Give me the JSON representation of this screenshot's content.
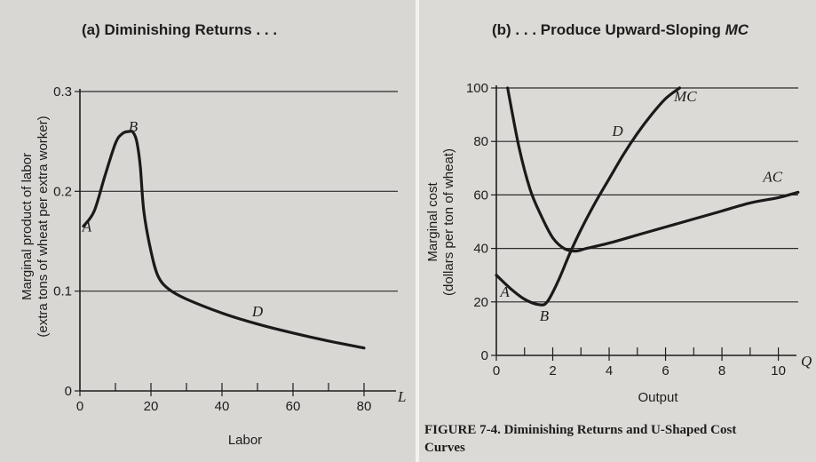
{
  "chart_data": [
    {
      "type": "line",
      "title": "(a) Diminishing Returns . . .",
      "xlabel": "Labor",
      "ylabel_line1": "Marginal product of labor",
      "ylabel_line2": "(extra tons of wheat per extra worker)",
      "axis_end_label": "L",
      "xlim": [
        0,
        90
      ],
      "ylim": [
        0,
        0.3
      ],
      "xticks": [
        "0",
        "20",
        "40",
        "60",
        "80"
      ],
      "xtick_values": [
        0,
        20,
        40,
        60,
        80
      ],
      "yticks": [
        "0",
        "0.1",
        "0.2",
        "0.3"
      ],
      "ytick_values": [
        0,
        0.1,
        0.2,
        0.3
      ],
      "grid": true,
      "series": [
        {
          "x": [
            1,
            4,
            7,
            10,
            12,
            14,
            15,
            16,
            17,
            18,
            20,
            22,
            25,
            30,
            40,
            50,
            60,
            70,
            80
          ],
          "y": [
            0.165,
            0.18,
            0.215,
            0.248,
            0.258,
            0.26,
            0.259,
            0.25,
            0.225,
            0.18,
            0.14,
            0.115,
            0.102,
            0.092,
            0.078,
            0.067,
            0.058,
            0.05,
            0.043
          ]
        }
      ],
      "points": [
        {
          "label": "A",
          "x": 2,
          "y": 0.16
        },
        {
          "label": "B",
          "x": 15,
          "y": 0.26
        },
        {
          "label": "D",
          "x": 50,
          "y": 0.075
        }
      ]
    },
    {
      "type": "line",
      "title_prefix": "(b) . . . Produce Upward-Sloping",
      "title_italic": "MC",
      "xlabel": "Output",
      "ylabel_line1": "Marginal cost",
      "ylabel_line2": "(dollars per ton of wheat)",
      "axis_end_label": "Q",
      "xlim": [
        0,
        10.8
      ],
      "ylim": [
        0,
        100
      ],
      "xticks": [
        "0",
        "2",
        "4",
        "6",
        "8",
        "10"
      ],
      "xtick_values": [
        0,
        2,
        4,
        6,
        8,
        10
      ],
      "yticks": [
        "0",
        "20",
        "40",
        "60",
        "80",
        "100"
      ],
      "ytick_values": [
        0,
        20,
        40,
        60,
        80,
        100
      ],
      "grid": true,
      "series": [
        {
          "name": "MC",
          "x": [
            0,
            0.5,
            1,
            1.5,
            1.8,
            2.2,
            2.6,
            3,
            3.5,
            4,
            4.5,
            5,
            5.5,
            6,
            6.5
          ],
          "y": [
            30,
            25,
            21,
            19,
            20,
            28,
            38,
            47,
            57,
            66,
            75,
            83,
            90,
            96,
            100
          ]
        },
        {
          "name": "AC",
          "x": [
            0.4,
            0.8,
            1.2,
            1.6,
            2,
            2.4,
            2.8,
            3.2,
            4,
            5,
            6,
            7,
            8,
            9,
            10,
            10.7
          ],
          "y": [
            100,
            78,
            62,
            52,
            44,
            40,
            39,
            40,
            42,
            45,
            48,
            51,
            54,
            57,
            59,
            61
          ]
        }
      ],
      "points": [
        {
          "label": "A",
          "x": 0.3,
          "y": 22
        },
        {
          "label": "B",
          "x": 1.7,
          "y": 13
        },
        {
          "label": "D",
          "x": 4.3,
          "y": 82
        },
        {
          "label": "MC",
          "x": 6.7,
          "y": 95
        },
        {
          "label": "AC",
          "x": 9.8,
          "y": 65
        }
      ],
      "caption_line1": "FIGURE 7-4. Diminishing Returns and U-Shaped Cost",
      "caption_line2": "Curves"
    }
  ]
}
